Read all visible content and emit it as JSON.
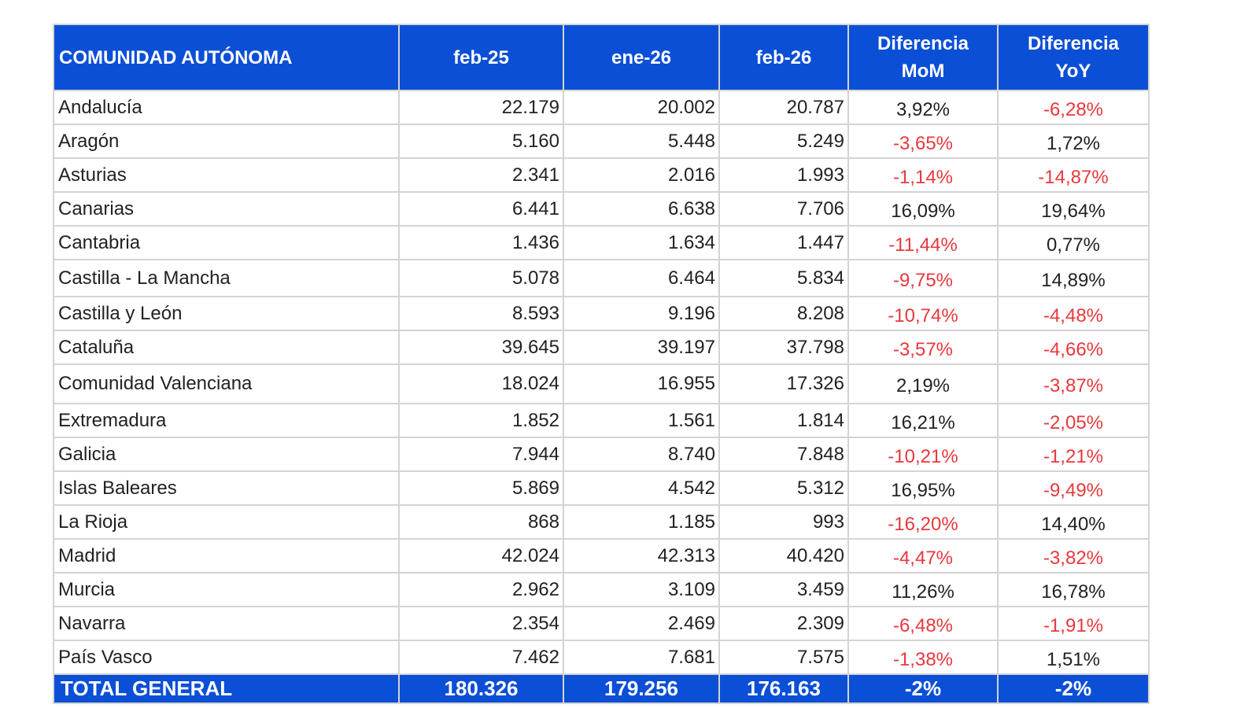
{
  "table": {
    "headers": [
      "COMUNIDAD AUTÓNOMA",
      "feb-25",
      "ene-26",
      "feb-26",
      "Diferencia MoM",
      "Diferencia YoY"
    ],
    "rows": [
      [
        "Andalucía",
        "22.179",
        "20.002",
        "20.787",
        "3,92%",
        "-6,28%"
      ],
      [
        "Aragón",
        "5.160",
        "5.448",
        "5.249",
        "-3,65%",
        "1,72%"
      ],
      [
        "Asturias",
        "2.341",
        "2.016",
        "1.993",
        "-1,14%",
        "-14,87%"
      ],
      [
        "Canarias",
        "6.441",
        "6.638",
        "7.706",
        "16,09%",
        "19,64%"
      ],
      [
        "Cantabria",
        "1.436",
        "1.634",
        "1.447",
        "-11,44%",
        "0,77%"
      ],
      [
        "Castilla - La Mancha",
        "5.078",
        "6.464",
        "5.834",
        "-9,75%",
        "14,89%"
      ],
      [
        "Castilla y León",
        "8.593",
        "9.196",
        "8.208",
        "-10,74%",
        "-4,48%"
      ],
      [
        "Cataluña",
        "39.645",
        "39.197",
        "37.798",
        "-3,57%",
        "-4,66%"
      ],
      [
        "Comunidad Valenciana",
        "18.024",
        "16.955",
        "17.326",
        "2,19%",
        "-3,87%"
      ],
      [
        "Extremadura",
        "1.852",
        "1.561",
        "1.814",
        "16,21%",
        "-2,05%"
      ],
      [
        "Galicia",
        "7.944",
        "8.740",
        "7.848",
        "-10,21%",
        "-1,21%"
      ],
      [
        "Islas Baleares",
        "5.869",
        "4.542",
        "5.312",
        "16,95%",
        "-9,49%"
      ],
      [
        "La Rioja",
        "868",
        "1.185",
        "993",
        "-16,20%",
        "14,40%"
      ],
      [
        "Madrid",
        "42.024",
        "42.313",
        "40.420",
        "-4,47%",
        "-3,82%"
      ],
      [
        "Murcia",
        "2.962",
        "3.109",
        "3.459",
        "11,26%",
        "16,78%"
      ],
      [
        "Navarra",
        "2.354",
        "2.469",
        "2.309",
        "-6,48%",
        "-1,91%"
      ],
      [
        "País Vasco",
        "7.462",
        "7.681",
        "7.575",
        "-1,38%",
        "1,51%"
      ]
    ],
    "total": [
      "TOTAL GENERAL",
      "180.326",
      "179.256",
      "176.163",
      "-2%",
      "-2%"
    ],
    "colors": {
      "header_bg": "#0b4fd6",
      "negative": "#e8383d",
      "text": "#222222"
    }
  }
}
